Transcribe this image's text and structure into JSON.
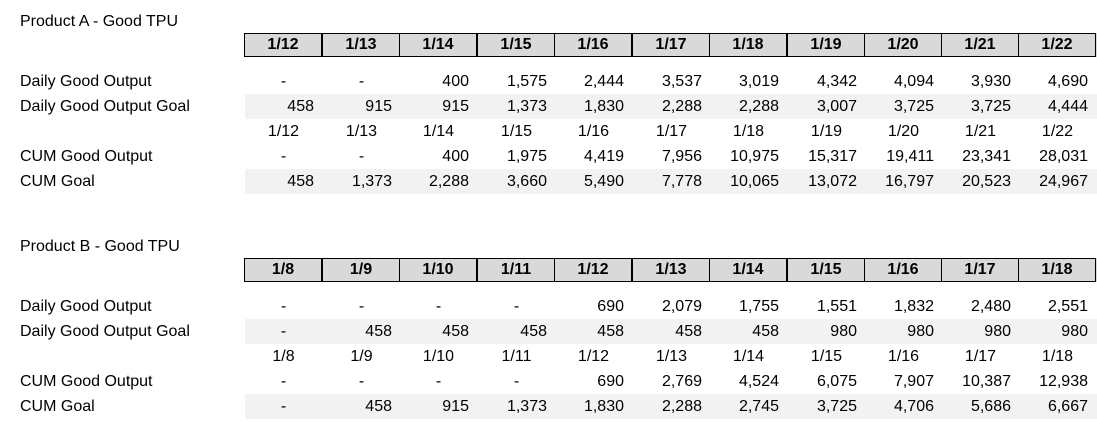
{
  "sections": [
    {
      "title": "Product A - Good TPU",
      "header": [
        "1/12",
        "1/13",
        "1/14",
        "1/15",
        "1/16",
        "1/17",
        "1/18",
        "1/19",
        "1/20",
        "1/21",
        "1/22"
      ],
      "rows": [
        {
          "label": "Daily Good Output",
          "values": [
            "-",
            "-",
            "400",
            "1,575",
            "2,444",
            "3,537",
            "3,019",
            "4,342",
            "4,094",
            "3,930",
            "4,690"
          ]
        },
        {
          "label": "Daily Good Output Goal",
          "values": [
            "458",
            "915",
            "915",
            "1,373",
            "1,830",
            "2,288",
            "2,288",
            "3,007",
            "3,725",
            "3,725",
            "4,444"
          ]
        },
        {
          "label": "",
          "values": [
            "1/12",
            "1/13",
            "1/14",
            "1/15",
            "1/16",
            "1/17",
            "1/18",
            "1/19",
            "1/20",
            "1/21",
            "1/22"
          ]
        },
        {
          "label": "CUM Good Output",
          "values": [
            "-",
            "-",
            "400",
            "1,975",
            "4,419",
            "7,956",
            "10,975",
            "15,317",
            "19,411",
            "23,341",
            "28,031"
          ]
        },
        {
          "label": "CUM Goal",
          "values": [
            "458",
            "1,373",
            "2,288",
            "3,660",
            "5,490",
            "7,778",
            "10,065",
            "13,072",
            "16,797",
            "20,523",
            "24,967"
          ]
        }
      ]
    },
    {
      "title": "Product B - Good TPU",
      "header": [
        "1/8",
        "1/9",
        "1/10",
        "1/11",
        "1/12",
        "1/13",
        "1/14",
        "1/15",
        "1/16",
        "1/17",
        "1/18"
      ],
      "rows": [
        {
          "label": "Daily Good Output",
          "values": [
            "-",
            "-",
            "-",
            "-",
            "690",
            "2,079",
            "1,755",
            "1,551",
            "1,832",
            "2,480",
            "2,551"
          ]
        },
        {
          "label": "Daily Good Output Goal",
          "values": [
            "-",
            "458",
            "458",
            "458",
            "458",
            "458",
            "458",
            "980",
            "980",
            "980",
            "980"
          ]
        },
        {
          "label": "",
          "values": [
            "1/8",
            "1/9",
            "1/10",
            "1/11",
            "1/12",
            "1/13",
            "1/14",
            "1/15",
            "1/16",
            "1/17",
            "1/18"
          ]
        },
        {
          "label": "CUM Good Output",
          "values": [
            "-",
            "-",
            "-",
            "-",
            "690",
            "2,769",
            "4,524",
            "6,075",
            "7,907",
            "10,387",
            "12,938"
          ]
        },
        {
          "label": "CUM Goal",
          "values": [
            "-",
            "458",
            "915",
            "1,373",
            "1,830",
            "2,288",
            "2,745",
            "3,725",
            "4,706",
            "5,686",
            "6,667"
          ]
        }
      ]
    }
  ]
}
